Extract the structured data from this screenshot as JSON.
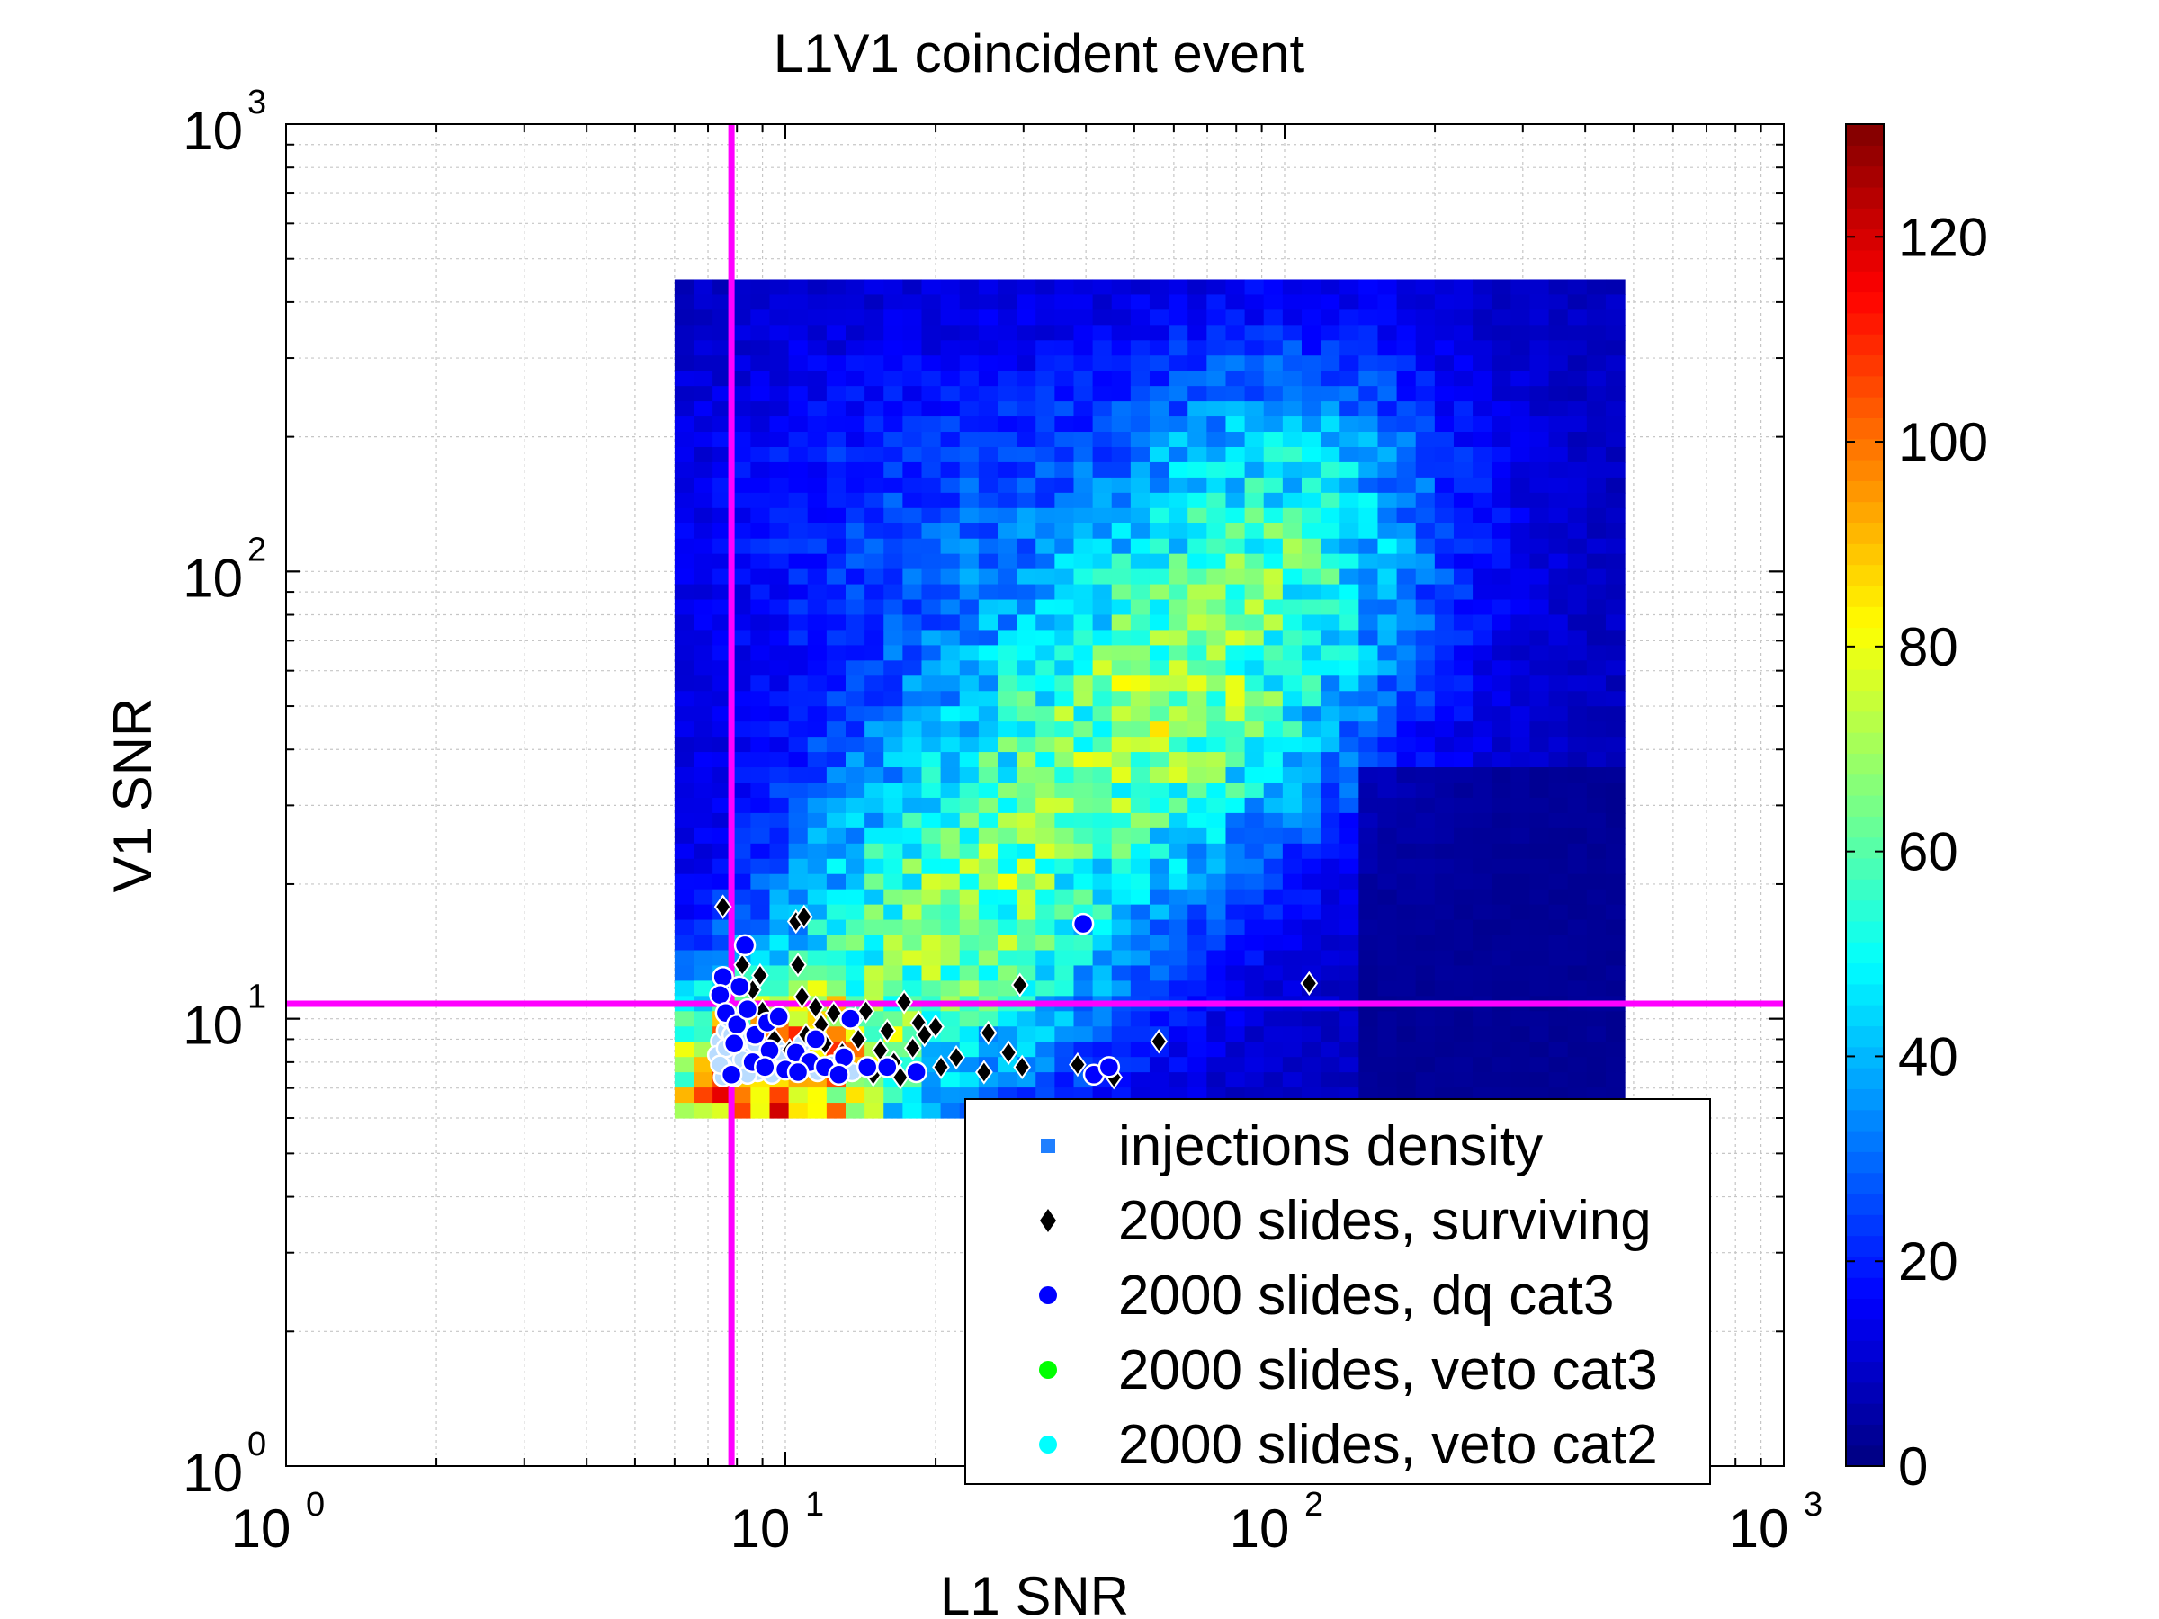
{
  "chart_data": {
    "type": "heatmap",
    "title": "L1V1 coincident event",
    "xlabel": "L1 SNR",
    "ylabel": "V1 SNR",
    "xscale": "log",
    "yscale": "log",
    "xlim": [
      1,
      1000
    ],
    "ylim": [
      1,
      1000
    ],
    "grid": true,
    "x_ticks": [
      {
        "base": "10",
        "exp": "0",
        "value": 1
      },
      {
        "base": "10",
        "exp": "1",
        "value": 10
      },
      {
        "base": "10",
        "exp": "2",
        "value": 100
      },
      {
        "base": "10",
        "exp": "3",
        "value": 1000
      }
    ],
    "y_ticks": [
      {
        "base": "10",
        "exp": "0",
        "value": 1
      },
      {
        "base": "10",
        "exp": "1",
        "value": 10
      },
      {
        "base": "10",
        "exp": "2",
        "value": 100
      },
      {
        "base": "10",
        "exp": "3",
        "value": 1000
      }
    ],
    "colorbar": {
      "min": 0,
      "max": 131,
      "colormap": "jet",
      "ticks": [
        "0",
        "20",
        "40",
        "60",
        "80",
        "100",
        "120"
      ]
    },
    "heatmap": {
      "x_range": [
        6,
        480
      ],
      "y_range": [
        6,
        450
      ],
      "nx": 50,
      "ny": 55
    },
    "thresholds": {
      "vertical_x": 7.8,
      "horizontal_y": 10.8,
      "color": "#ff00ff"
    },
    "legend": {
      "placement": "bottom-right",
      "entries": [
        {
          "label": "injections density",
          "marker": "square",
          "color": "#1f7fff"
        },
        {
          "label": "2000 slides, surviving",
          "marker": "diamond",
          "color": "#000000"
        },
        {
          "label": "2000 slides, dq cat3",
          "marker": "circle",
          "color": "#0000ff"
        },
        {
          "label": "2000 slides, veto cat3",
          "marker": "circle",
          "color": "#00ff00"
        },
        {
          "label": "2000 slides, veto cat2",
          "marker": "circle",
          "color": "#00ffff"
        }
      ]
    },
    "surviving_points": [
      [
        7.5,
        17.8
      ],
      [
        8.2,
        13.2
      ],
      [
        8.9,
        12.5
      ],
      [
        8.6,
        11.6
      ],
      [
        10.5,
        16.5
      ],
      [
        10.9,
        16.9
      ],
      [
        10.6,
        13.2
      ],
      [
        10.8,
        11.2
      ],
      [
        11.5,
        10.6
      ],
      [
        12.5,
        10.3
      ],
      [
        13.8,
        10.0
      ],
      [
        14.5,
        10.4
      ],
      [
        17.3,
        10.9
      ],
      [
        18.5,
        9.8
      ],
      [
        20.0,
        9.6
      ],
      [
        25.5,
        9.3
      ],
      [
        29.5,
        11.9
      ],
      [
        28.0,
        8.4
      ],
      [
        29.8,
        7.8
      ],
      [
        38.5,
        7.9
      ],
      [
        45.5,
        7.4
      ],
      [
        25.0,
        7.6
      ],
      [
        56.0,
        8.9
      ],
      [
        112.0,
        12.0
      ],
      [
        9.5,
        9.0
      ],
      [
        10.2,
        8.5
      ],
      [
        11.0,
        9.2
      ],
      [
        12.0,
        8.8
      ],
      [
        13.0,
        8.4
      ],
      [
        14.0,
        9.0
      ],
      [
        15.5,
        8.5
      ],
      [
        16.5,
        8.0
      ],
      [
        18.0,
        8.6
      ],
      [
        19.0,
        9.2
      ],
      [
        20.5,
        7.8
      ],
      [
        22.0,
        8.2
      ],
      [
        15.0,
        7.5
      ],
      [
        12.5,
        7.7
      ],
      [
        17.0,
        7.4
      ],
      [
        9.0,
        10.4
      ],
      [
        11.8,
        9.7
      ],
      [
        16.0,
        9.4
      ]
    ],
    "dq_cat3_points": [
      [
        7.5,
        12.4
      ],
      [
        7.4,
        11.3
      ],
      [
        8.3,
        14.6
      ],
      [
        8.1,
        11.8
      ],
      [
        7.6,
        10.3
      ],
      [
        8.0,
        9.7
      ],
      [
        8.7,
        9.2
      ],
      [
        9.2,
        9.8
      ],
      [
        9.7,
        10.1
      ],
      [
        9.3,
        8.5
      ],
      [
        10.5,
        8.4
      ],
      [
        11.2,
        8.0
      ],
      [
        12.0,
        7.8
      ],
      [
        13.1,
        8.2
      ],
      [
        13.5,
        10.0
      ],
      [
        14.6,
        7.8
      ],
      [
        16.0,
        7.8
      ],
      [
        18.3,
        7.6
      ],
      [
        39.5,
        16.3
      ],
      [
        41.5,
        7.5
      ],
      [
        44.5,
        7.8
      ],
      [
        8.6,
        8.0
      ],
      [
        9.1,
        7.8
      ],
      [
        10.0,
        7.7
      ],
      [
        7.9,
        8.8
      ],
      [
        8.4,
        10.5
      ],
      [
        7.8,
        7.5
      ],
      [
        11.5,
        9.0
      ],
      [
        10.6,
        7.6
      ],
      [
        12.8,
        7.5
      ]
    ],
    "veto_cat2_points": [
      [
        7.4,
        8.9
      ],
      [
        7.6,
        9.4
      ],
      [
        7.8,
        8.2
      ],
      [
        7.5,
        7.8
      ],
      [
        8.0,
        8.7
      ],
      [
        8.3,
        7.7
      ],
      [
        8.6,
        8.4
      ],
      [
        8.9,
        7.9
      ],
      [
        9.2,
        8.1
      ],
      [
        9.6,
        8.6
      ],
      [
        7.7,
        10.0
      ],
      [
        8.1,
        9.6
      ],
      [
        8.5,
        9.0
      ],
      [
        7.5,
        7.4
      ],
      [
        7.9,
        7.4
      ],
      [
        8.8,
        7.6
      ],
      [
        9.4,
        7.5
      ],
      [
        10.2,
        7.9
      ],
      [
        10.8,
        8.8
      ],
      [
        11.6,
        7.6
      ],
      [
        12.4,
        7.9
      ],
      [
        13.6,
        7.6
      ],
      [
        7.3,
        8.3
      ],
      [
        8.2,
        8.1
      ],
      [
        7.6,
        8.6
      ],
      [
        8.7,
        8.8
      ],
      [
        9.9,
        8.3
      ],
      [
        7.4,
        7.9
      ],
      [
        7.8,
        9.2
      ],
      [
        8.4,
        7.5
      ]
    ]
  }
}
